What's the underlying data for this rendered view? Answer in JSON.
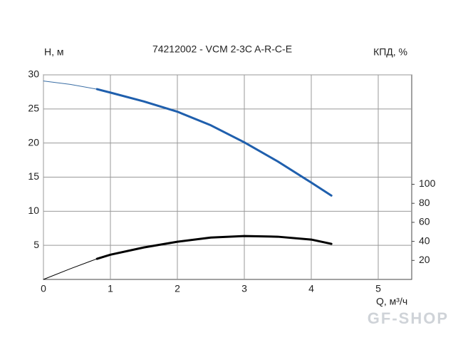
{
  "chart_data": {
    "type": "line",
    "title": "74212002 - VCM 2-3C A-R-C-E",
    "y_label": "H, м",
    "y2_label": "КПД, %",
    "x_label": "Q, м³/ч",
    "watermark": "GF-SHOP",
    "xlim": [
      0,
      5.5
    ],
    "xticks": [
      0,
      1,
      2,
      3,
      4,
      5
    ],
    "ylim": [
      0,
      30
    ],
    "yticks": [
      5,
      10,
      15,
      20,
      25,
      30
    ],
    "y2lim": [
      0,
      215
    ],
    "y2ticks": [
      20,
      40,
      60,
      80,
      100
    ],
    "grid": true,
    "series": [
      {
        "color": "#3a6ea5",
        "width": 1,
        "x": [
          0,
          0.4,
          0.8
        ],
        "values": [
          29.1,
          28.6,
          27.9
        ]
      },
      {
        "color": "#1f5fad",
        "width": 3,
        "x": [
          0.8,
          1,
          1.5,
          2,
          2.5,
          3,
          3.5,
          4,
          4.3
        ],
        "values": [
          27.9,
          27.4,
          26.1,
          24.6,
          22.6,
          20.1,
          17.3,
          14.2,
          12.3
        ]
      },
      {
        "color": "#000000",
        "width": 1,
        "axis": "y2",
        "x": [
          0,
          0.4,
          0.8
        ],
        "values": [
          0,
          11.2,
          21.7
        ]
      },
      {
        "color": "#000000",
        "width": 3,
        "axis": "y2",
        "x": [
          0.8,
          1,
          1.5,
          2,
          2.5,
          3,
          3.5,
          4,
          4.3
        ],
        "values": [
          21.7,
          26,
          33.6,
          39.6,
          44,
          45.6,
          44.9,
          41.9,
          37.4
        ]
      }
    ]
  }
}
